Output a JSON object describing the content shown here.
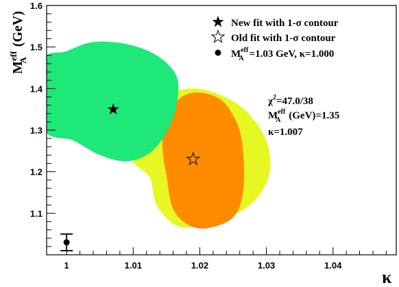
{
  "chart_data": {
    "type": "scatter",
    "xlabel": "κ",
    "ylabel": {
      "main": "M",
      "sup": "eff",
      "sub": "A",
      "unit": " (GeV)"
    },
    "xlim": [
      0.997,
      1.0495
    ],
    "ylim": [
      1.0,
      1.6
    ],
    "x_ticks": [
      1,
      1.01,
      1.02,
      1.03,
      1.04
    ],
    "x_tick_labels": [
      "1",
      "1.01",
      "1.02",
      "1.03",
      "1.04"
    ],
    "y_ticks": [
      1.1,
      1.2,
      1.3,
      1.4,
      1.5,
      1.6
    ],
    "y_tick_labels": [
      "1.1",
      "1.2",
      "1.3",
      "1.4",
      "1.5",
      "1.6"
    ],
    "colors": {
      "old_outer": "#e6f723",
      "old_inner": "#ff8c00",
      "new_contour": "#1ee878"
    },
    "contours": [
      {
        "name": "old-fit-contour-outer",
        "color": "#e6f723",
        "polygon": [
          [
            1.0125,
            1.185
          ],
          [
            1.0135,
            1.12
          ],
          [
            1.0165,
            1.07
          ],
          [
            1.02,
            1.07
          ],
          [
            1.0245,
            1.09
          ],
          [
            1.0285,
            1.135
          ],
          [
            1.0305,
            1.2
          ],
          [
            1.03,
            1.275
          ],
          [
            1.027,
            1.345
          ],
          [
            1.023,
            1.385
          ],
          [
            1.019,
            1.4
          ],
          [
            1.015,
            1.385
          ],
          [
            1.0125,
            1.345
          ],
          [
            1.0105,
            1.275
          ],
          [
            1.01,
            1.225
          ]
        ]
      },
      {
        "name": "old-fit-contour-inner",
        "color": "#ff8c00",
        "polygon": [
          [
            1.015,
            1.19
          ],
          [
            1.016,
            1.11
          ],
          [
            1.0185,
            1.07
          ],
          [
            1.0215,
            1.065
          ],
          [
            1.025,
            1.09
          ],
          [
            1.0265,
            1.15
          ],
          [
            1.0265,
            1.25
          ],
          [
            1.0255,
            1.32
          ],
          [
            1.023,
            1.375
          ],
          [
            1.019,
            1.39
          ],
          [
            1.016,
            1.36
          ],
          [
            1.0145,
            1.29
          ],
          [
            1.0145,
            1.24
          ]
        ]
      },
      {
        "name": "new-fit-contour",
        "color": "#1ee878",
        "polygon": [
          [
            0.9965,
            1.305
          ],
          [
            0.9965,
            1.465
          ],
          [
            1.0,
            1.49
          ],
          [
            1.004,
            1.512
          ],
          [
            1.009,
            1.507
          ],
          [
            1.0135,
            1.48
          ],
          [
            1.0165,
            1.43
          ],
          [
            1.0165,
            1.36
          ],
          [
            1.015,
            1.295
          ],
          [
            1.0125,
            1.245
          ],
          [
            1.009,
            1.225
          ],
          [
            1.005,
            1.24
          ],
          [
            1.001,
            1.275
          ]
        ]
      }
    ],
    "points": [
      {
        "name": "new-fit",
        "x": 1.007,
        "y": 1.35,
        "marker": "filled-star"
      },
      {
        "name": "old-fit",
        "x": 1.019,
        "y": 1.23,
        "marker": "open-star"
      },
      {
        "name": "reference",
        "x": 1.0,
        "y": 1.03,
        "yerr": 0.02,
        "marker": "filled-circle"
      }
    ],
    "legend": {
      "placement": "top-right",
      "entries": [
        {
          "marker": "filled-star",
          "text": "New fit with 1-σ contour"
        },
        {
          "marker": "open-star",
          "text": "Old fit with 1-σ contour"
        },
        {
          "marker": "filled-circle",
          "text_main": "M",
          "text_sup": "eff",
          "text_sub": "A",
          "text_rest": "=1.03 GeV, κ=1.000"
        }
      ]
    },
    "annotations": {
      "chi2_main": "χ",
      "chi2_sup": "2",
      "chi2_rest": "=47.0/38",
      "ma_main": "M",
      "ma_sup": "eff",
      "ma_sub": "A",
      "ma_rest": " (GeV)=1.35",
      "kappa": "κ=1.007"
    }
  }
}
